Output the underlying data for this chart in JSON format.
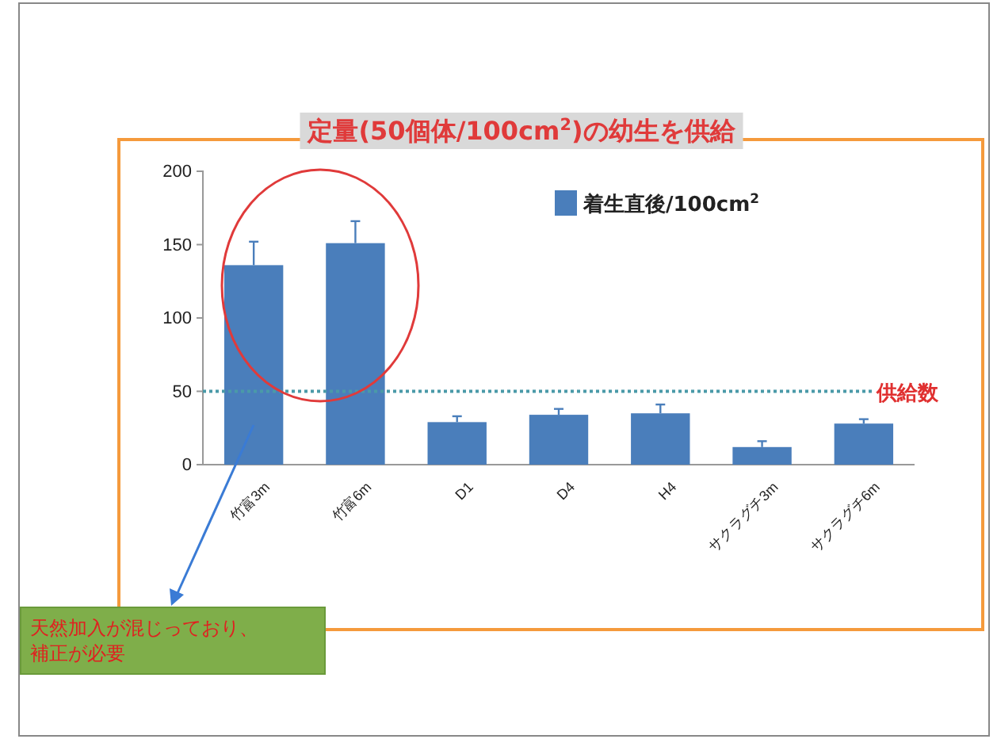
{
  "chart_data": {
    "type": "bar",
    "title": "定量(50個体/100cm$^{2}$)の幼生を供給",
    "categories": [
      "竹富3m",
      "竹富6m",
      "D1",
      "D4",
      "H4",
      "サクラグチ3m",
      "サクラグチ6m"
    ],
    "series": [
      {
        "name": "着生直後/100cm$^{2}$",
        "color": "#4a7ebb",
        "values": [
          136,
          151,
          29,
          34,
          35,
          12,
          28
        ],
        "errors": [
          16,
          15,
          4,
          4,
          6,
          4,
          3
        ]
      }
    ],
    "ylim": [
      0,
      200
    ],
    "yticks": [
      0,
      50,
      100,
      150,
      200
    ],
    "grid": false,
    "legend": "top right",
    "ref_lines": [
      {
        "axis": "y",
        "value": 50,
        "label": "供給数",
        "color": "#4a9aa8",
        "line_style": "dotted"
      }
    ],
    "annotations": [
      "天然加入が混じっており、補正が必要"
    ]
  }
}
